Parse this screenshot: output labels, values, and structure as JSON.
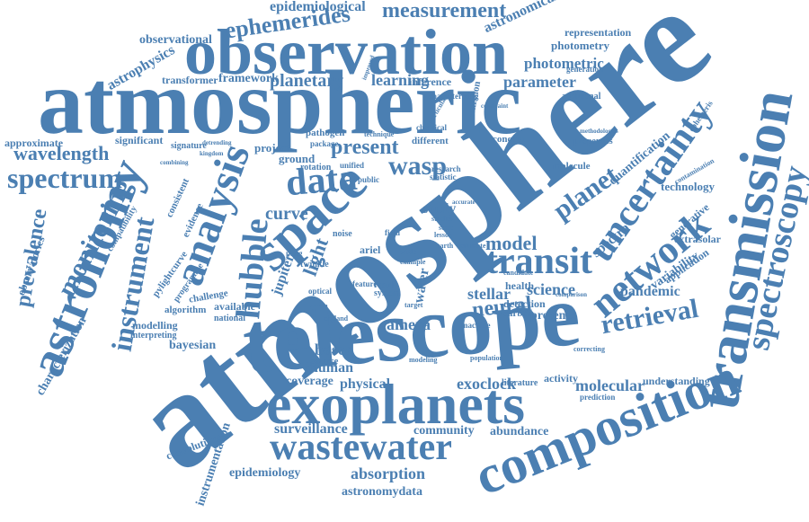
{
  "colors": {
    "word": "#4b7fb2",
    "background": "#ffffff"
  },
  "words": [
    {
      "text": "atmosphere"
    },
    {
      "text": "atmospheric"
    },
    {
      "text": "telescope"
    },
    {
      "text": "observation"
    },
    {
      "text": "exoplanets"
    },
    {
      "text": "transmission"
    },
    {
      "text": "astronomy"
    },
    {
      "text": "composition"
    },
    {
      "text": "wastewater"
    },
    {
      "text": "space"
    },
    {
      "text": "analysis"
    },
    {
      "text": "uncertainty"
    },
    {
      "text": "network"
    },
    {
      "text": "transit"
    },
    {
      "text": "spectroscopy"
    },
    {
      "text": "hubble"
    },
    {
      "text": "instrument"
    },
    {
      "text": "ephemerides"
    },
    {
      "text": "measurement"
    },
    {
      "text": "spectrum"
    },
    {
      "text": "wavelength"
    },
    {
      "text": "data"
    },
    {
      "text": "planet"
    },
    {
      "text": "retrieval"
    },
    {
      "text": "monitoring"
    },
    {
      "text": "prevalence"
    },
    {
      "text": "model"
    },
    {
      "text": "wasp"
    },
    {
      "text": "present"
    },
    {
      "text": "neural"
    },
    {
      "text": "stellar"
    },
    {
      "text": "light"
    },
    {
      "text": "curve"
    },
    {
      "text": "planetary"
    },
    {
      "text": "learning"
    },
    {
      "text": "parameter"
    },
    {
      "text": "photometric"
    },
    {
      "text": "epidemiological"
    },
    {
      "text": "astronomical"
    },
    {
      "text": "astrophysics"
    },
    {
      "text": "observational"
    },
    {
      "text": "transformer"
    },
    {
      "text": "framework"
    },
    {
      "text": "approximate"
    },
    {
      "text": "significant"
    },
    {
      "text": "science"
    },
    {
      "text": "pandemic"
    },
    {
      "text": "variability"
    },
    {
      "text": "exoclock"
    },
    {
      "text": "molecular"
    },
    {
      "text": "abundance"
    },
    {
      "text": "community"
    },
    {
      "text": "surveillance"
    },
    {
      "text": "epidemiology"
    },
    {
      "text": "absorption"
    },
    {
      "text": "astronomydata"
    },
    {
      "text": "convolutional"
    },
    {
      "text": "bayesian"
    },
    {
      "text": "based"
    },
    {
      "text": "human"
    },
    {
      "text": "coverage"
    },
    {
      "text": "physical"
    },
    {
      "text": "camera"
    },
    {
      "text": "presence"
    },
    {
      "text": "characterization"
    },
    {
      "text": "instrumentation"
    },
    {
      "text": "observatories"
    },
    {
      "text": "technology"
    },
    {
      "text": "extrasolar"
    },
    {
      "text": "quantification"
    },
    {
      "text": "spectra"
    },
    {
      "text": "photometry"
    },
    {
      "text": "representation"
    },
    {
      "text": "generative"
    },
    {
      "text": "application"
    },
    {
      "text": "understanding"
    },
    {
      "text": "jupiter"
    },
    {
      "text": "water"
    },
    {
      "text": "ground"
    },
    {
      "text": "project"
    },
    {
      "text": "study"
    },
    {
      "text": "health"
    },
    {
      "text": "detection"
    },
    {
      "text": "activity"
    },
    {
      "text": "modelling"
    },
    {
      "text": "available"
    },
    {
      "text": "algorithm"
    },
    {
      "text": "challenge"
    },
    {
      "text": "interpreting"
    },
    {
      "text": "national"
    },
    {
      "text": "pylightcurve"
    },
    {
      "text": "programme"
    },
    {
      "text": "compatibility"
    },
    {
      "text": "consistent"
    },
    {
      "text": "evidence"
    },
    {
      "text": "signature"
    },
    {
      "text": "pathogen"
    },
    {
      "text": "inference"
    },
    {
      "text": "emission"
    },
    {
      "text": "concept"
    },
    {
      "text": "properties"
    },
    {
      "text": "molecule"
    },
    {
      "text": "different"
    },
    {
      "text": "rotation"
    },
    {
      "text": "source"
    },
    {
      "text": "result"
    },
    {
      "text": "system"
    },
    {
      "text": "feature"
    },
    {
      "text": "twinkle"
    },
    {
      "text": "optical"
    },
    {
      "text": "ariel"
    },
    {
      "text": "carbon"
    },
    {
      "text": "machine"
    },
    {
      "text": "literature"
    },
    {
      "text": "prediction"
    },
    {
      "text": "additional"
    },
    {
      "text": "generation"
    },
    {
      "text": "characterizing"
    },
    {
      "text": "contamination"
    },
    {
      "text": "statistic"
    },
    {
      "text": "chemical"
    },
    {
      "text": "technique"
    },
    {
      "text": "package"
    },
    {
      "text": "public"
    },
    {
      "text": "unified"
    },
    {
      "text": "research"
    },
    {
      "text": "field"
    },
    {
      "text": "noise"
    },
    {
      "text": "pheg"
    },
    {
      "text": "earth"
    },
    {
      "text": "lesson"
    },
    {
      "text": "modeling"
    },
    {
      "text": "population"
    },
    {
      "text": "correcting"
    },
    {
      "text": "example"
    },
    {
      "text": "scale"
    },
    {
      "text": "studies"
    },
    {
      "text": "wide"
    },
    {
      "text": "england"
    },
    {
      "text": "target"
    },
    {
      "text": "kingdom"
    },
    {
      "text": "detrending"
    },
    {
      "text": "comparison"
    },
    {
      "text": "methodologies"
    },
    {
      "text": "candidate"
    },
    {
      "text": "estimate"
    },
    {
      "text": "accurate"
    },
    {
      "text": "particular"
    },
    {
      "text": "constraint"
    },
    {
      "text": "combining"
    },
    {
      "text": "improved"
    },
    {
      "text": "ephemeris"
    }
  ]
}
